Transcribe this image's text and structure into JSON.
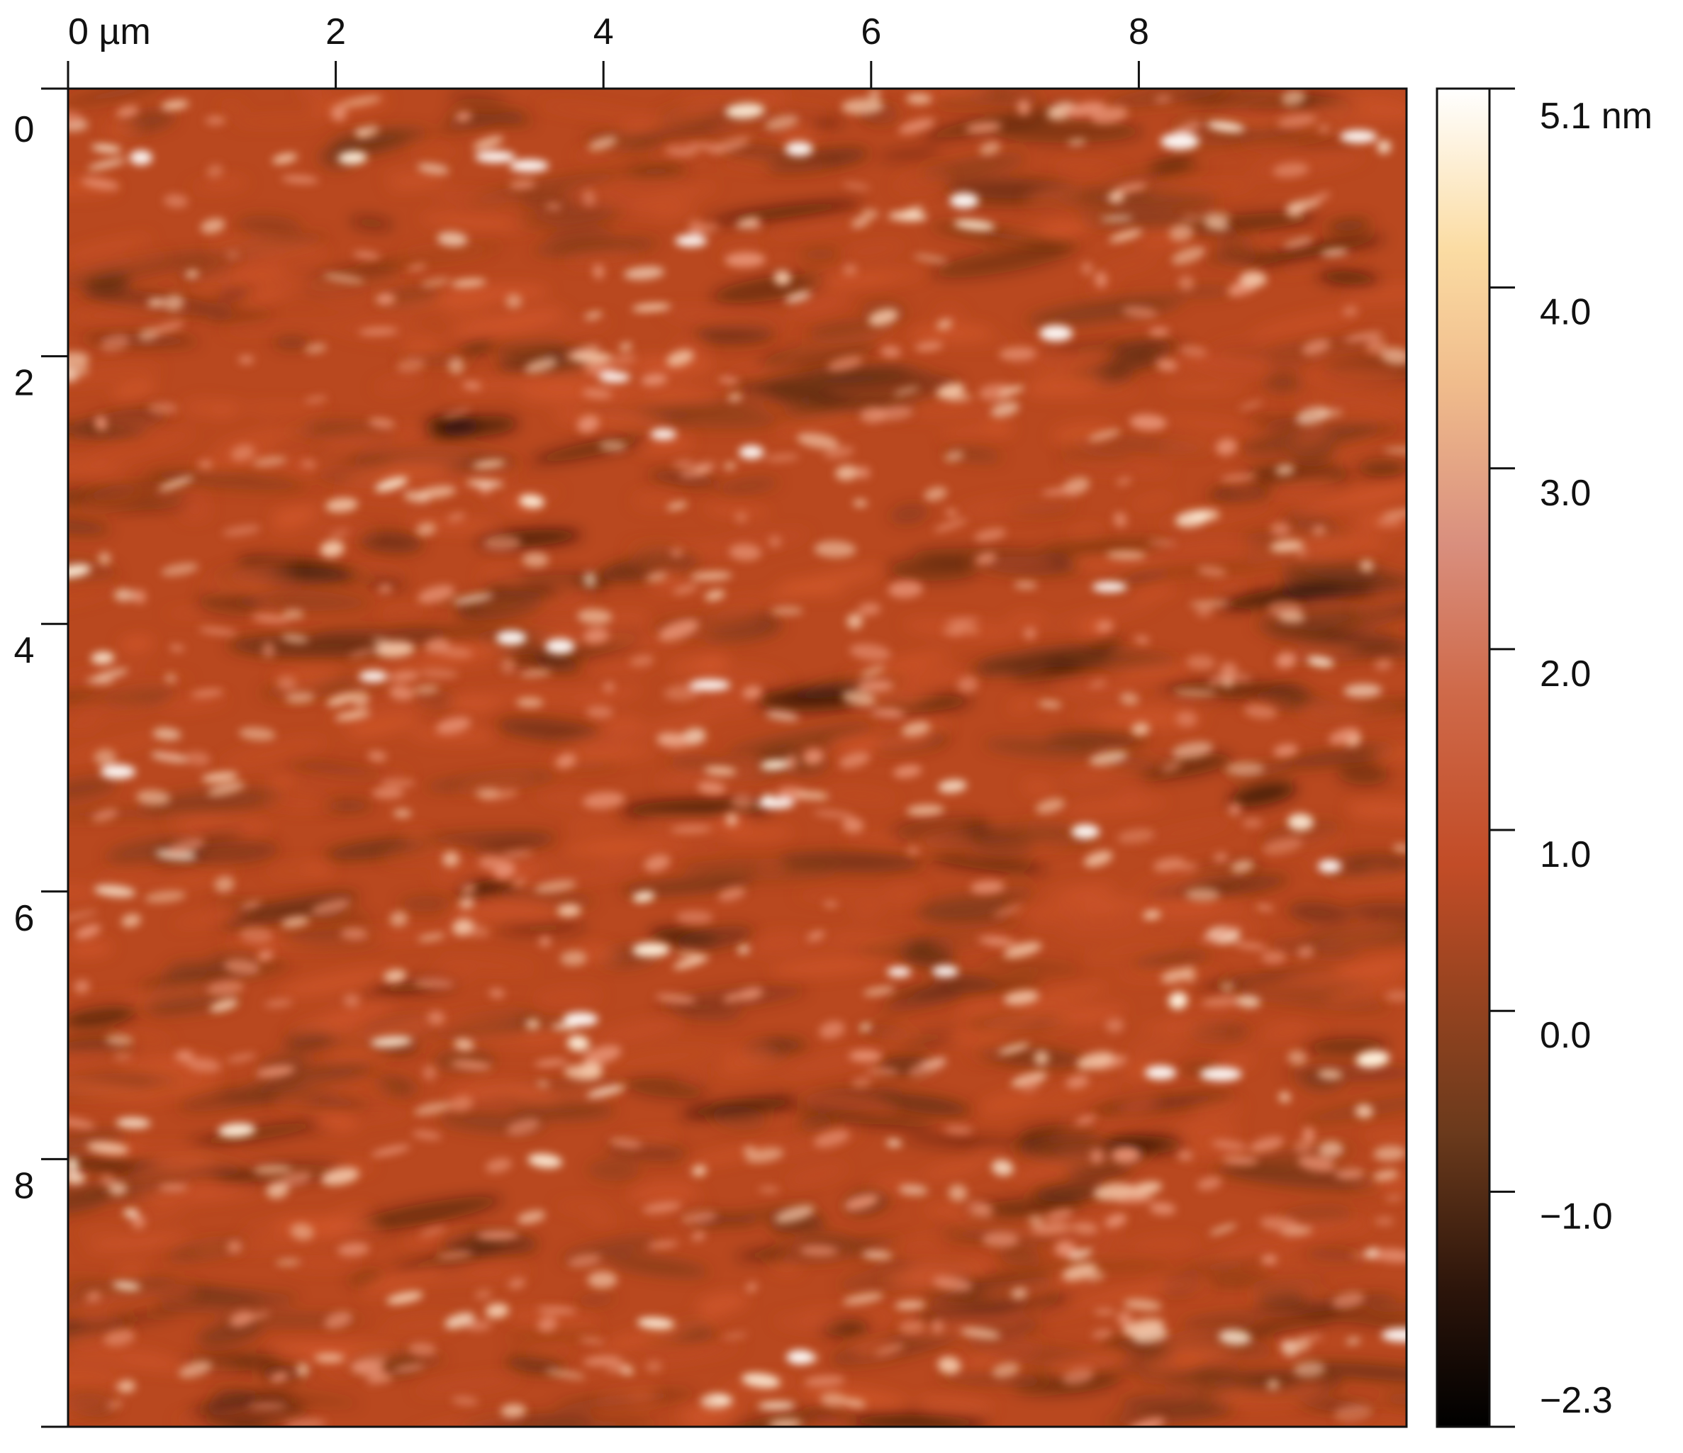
{
  "image": {
    "kind": "AFM height map",
    "subject": "surface topography with many small light-colored grains on a red-brown background",
    "colormap": [
      "#000000",
      "#3b1e0f",
      "#6b3a1c",
      "#b54a22",
      "#c9502a",
      "#d98a7a",
      "#f6d29a",
      "#ffffff"
    ]
  },
  "axes": {
    "x_ticks": [
      {
        "value": 0,
        "label": "0 µm"
      },
      {
        "value": 2,
        "label": "2"
      },
      {
        "value": 4,
        "label": "4"
      },
      {
        "value": 6,
        "label": "6"
      },
      {
        "value": 8,
        "label": "8"
      }
    ],
    "y_ticks": [
      {
        "value": 0,
        "label": "0"
      },
      {
        "value": 2,
        "label": "2"
      },
      {
        "value": 4,
        "label": "4"
      },
      {
        "value": 6,
        "label": "6"
      },
      {
        "value": 8,
        "label": "8"
      }
    ],
    "range": [
      0,
      10
    ]
  },
  "colorbar": {
    "range": [
      -2.3,
      5.1
    ],
    "ticks": [
      {
        "value": 5.1,
        "label": "5.1 nm"
      },
      {
        "value": 4.0,
        "label": "4.0"
      },
      {
        "value": 3.0,
        "label": "3.0"
      },
      {
        "value": 2.0,
        "label": "2.0"
      },
      {
        "value": 1.0,
        "label": "1.0"
      },
      {
        "value": 0.0,
        "label": "0.0"
      },
      {
        "value": -1.0,
        "label": "−1.0"
      },
      {
        "value": -2.3,
        "label": "−2.3"
      }
    ]
  }
}
